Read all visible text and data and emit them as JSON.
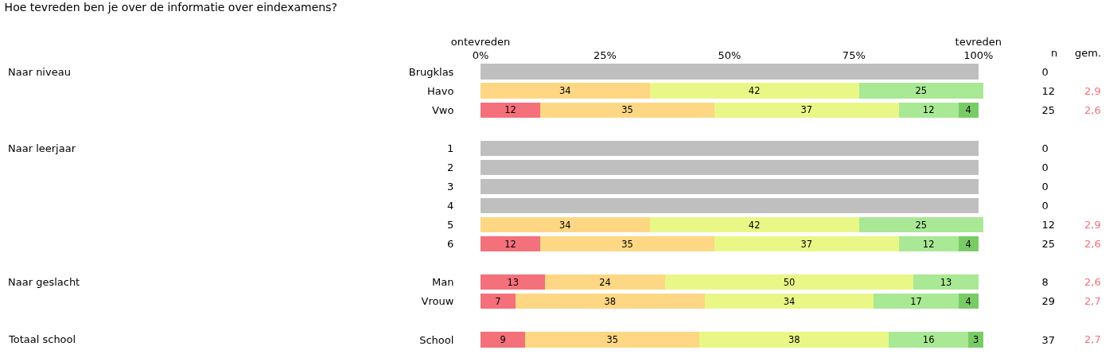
{
  "chart_data": {
    "type": "bar",
    "orientation": "horizontal",
    "stacked": true,
    "title": "Hoe tevreden ben je over de informatie over eindexamens?",
    "categories": [
      "Brugklas",
      "Havo",
      "Vwo",
      null,
      "1",
      "2",
      "3",
      "4",
      "5",
      "6",
      null,
      "Man",
      "Vrouw",
      null,
      "School"
    ],
    "xlim": [
      0,
      101
    ],
    "y2_categories": [
      "0",
      "12",
      "25",
      null,
      "0",
      "0",
      "0",
      "0",
      "12",
      "25",
      null,
      "8",
      "29",
      null,
      "37"
    ],
    "xticks": [
      {
        "value": 0,
        "label": "ontevreden\n0%"
      },
      {
        "value": 25,
        "label": "25%"
      },
      {
        "value": 50,
        "label": "50%"
      },
      {
        "value": 75,
        "label": "75%"
      },
      {
        "value": 100,
        "label": "tevreden\n100%"
      }
    ],
    "series": [
      {
        "color": "#bfbfbf",
        "values": [
          100,
          null,
          null,
          null,
          100,
          100,
          100,
          100,
          null,
          null,
          null,
          null,
          null,
          null,
          null
        ]
      },
      {
        "color": "#f4707a",
        "values": [
          null,
          null,
          12,
          null,
          null,
          null,
          null,
          null,
          null,
          12,
          null,
          13,
          7,
          null,
          9
        ],
        "value_labels": [
          null,
          null,
          "12",
          null,
          null,
          null,
          null,
          null,
          null,
          "12",
          null,
          "13",
          "7",
          null,
          "9"
        ]
      },
      {
        "color": "#fdd783",
        "values": [
          null,
          34,
          35,
          null,
          null,
          null,
          null,
          null,
          34,
          35,
          null,
          24,
          38,
          null,
          35
        ],
        "value_labels": [
          null,
          "34",
          "35",
          null,
          null,
          null,
          null,
          null,
          "34",
          "35",
          null,
          "24",
          "38",
          null,
          "35"
        ]
      },
      {
        "color": "#e9f787",
        "values": [
          null,
          42,
          37,
          null,
          null,
          null,
          null,
          null,
          42,
          37,
          null,
          50,
          34,
          null,
          38
        ],
        "value_labels": [
          null,
          "42",
          "37",
          null,
          null,
          null,
          null,
          null,
          "42",
          "37",
          null,
          "50",
          "34",
          null,
          "38"
        ]
      },
      {
        "color": "#a9e894",
        "values": [
          null,
          25,
          12,
          null,
          null,
          null,
          null,
          null,
          25,
          12,
          null,
          13,
          17,
          null,
          16
        ],
        "value_labels": [
          null,
          "25",
          "12",
          null,
          null,
          null,
          null,
          null,
          "25",
          "12",
          null,
          "13",
          "17",
          null,
          "16"
        ]
      },
      {
        "color": "#79cc65",
        "values": [
          null,
          null,
          4,
          null,
          null,
          null,
          null,
          null,
          null,
          4,
          null,
          null,
          4,
          null,
          3
        ],
        "value_labels": [
          null,
          null,
          "4",
          null,
          null,
          null,
          null,
          null,
          null,
          "4",
          null,
          null,
          "4",
          null,
          "3"
        ]
      }
    ],
    "annotations": [
      "Naar niveau",
      "Naar leerjaar",
      "Naar geslacht",
      "Totaal school",
      "n",
      "gem.",
      "2,9",
      "2,6",
      "2,9",
      "2,6",
      "2,6",
      "2,7",
      "2,7"
    ]
  }
}
